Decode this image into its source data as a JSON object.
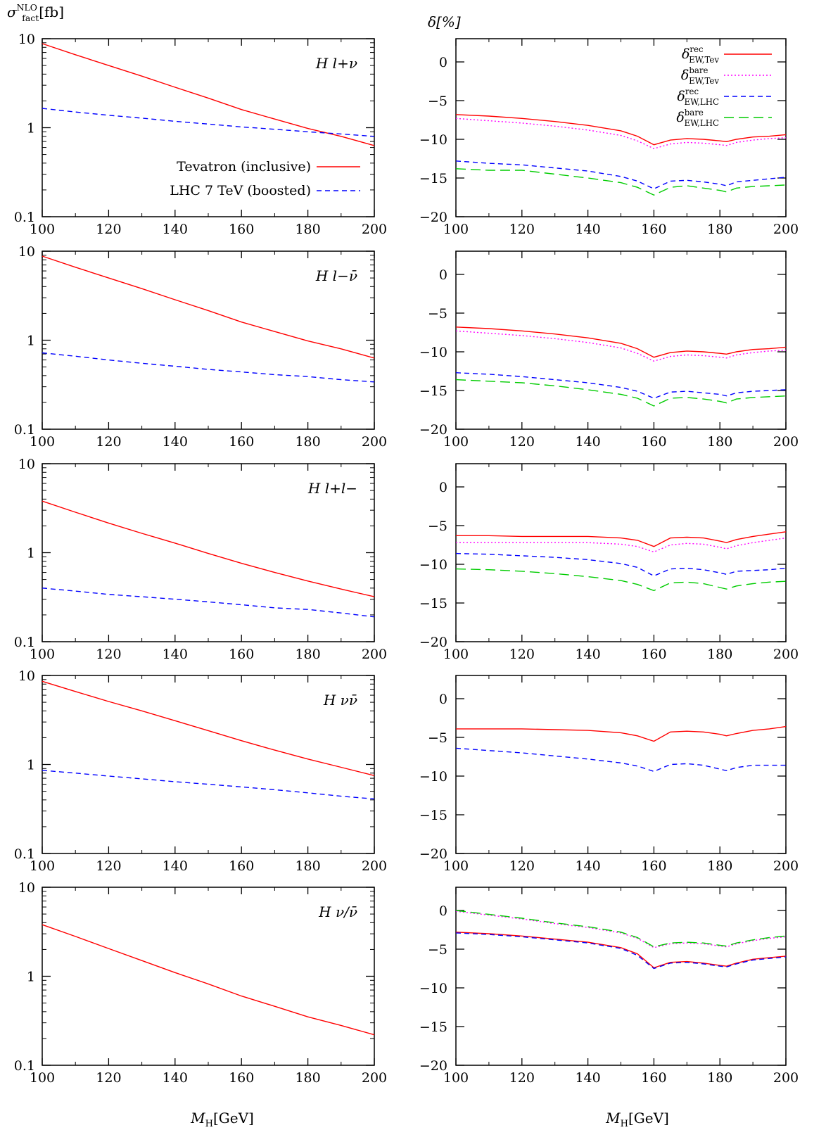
{
  "figure": {
    "left_ylabel": "σ_fact^NLO[fb]",
    "right_ylabel": "δ[%]",
    "xlabel": "M_H[GeV]",
    "colors": {
      "tevatron": "#ff0000",
      "lhc": "#0000ff",
      "tev_bare": "#ff00ff",
      "lhc_bare": "#00cc00"
    }
  },
  "chart_data": [
    {
      "type": "line",
      "panel": "left-1",
      "annotation": "H l+ν",
      "log_y": true,
      "x": [
        100,
        110,
        120,
        130,
        140,
        150,
        160,
        170,
        180,
        190,
        200
      ],
      "xlim": [
        100,
        200
      ],
      "ylim": [
        0.1,
        10
      ],
      "xticks": [
        "100",
        "120",
        "140",
        "160",
        "180",
        "200"
      ],
      "yticks": [
        "0.1",
        "1",
        "10"
      ],
      "legend": [
        {
          "label": "Tevatron (inclusive)",
          "style": "solid",
          "color": "#ff0000"
        },
        {
          "label": "LHC 7 TeV (boosted)",
          "style": "dashed",
          "color": "#0000ff"
        }
      ],
      "series": [
        {
          "name": "Tevatron (inclusive)",
          "style": "solid",
          "color": "#ff0000",
          "values": [
            8.8,
            6.6,
            5.0,
            3.8,
            2.85,
            2.15,
            1.6,
            1.25,
            0.98,
            0.8,
            0.63
          ]
        },
        {
          "name": "LHC 7 TeV (boosted)",
          "style": "dashed",
          "color": "#0000ff",
          "values": [
            1.65,
            1.5,
            1.38,
            1.28,
            1.18,
            1.1,
            1.02,
            0.96,
            0.9,
            0.85,
            0.8
          ]
        }
      ]
    },
    {
      "type": "line",
      "panel": "right-1",
      "legend_pos": "top-right",
      "x": [
        100,
        110,
        120,
        130,
        140,
        150,
        155,
        160,
        165,
        170,
        175,
        180,
        182,
        185,
        190,
        195,
        200
      ],
      "xlim": [
        100,
        200
      ],
      "ylim": [
        -20,
        3
      ],
      "xticks": [
        "100",
        "120",
        "140",
        "160",
        "180",
        "200"
      ],
      "yticks": [
        "0",
        "−5",
        "−10",
        "−15",
        "−20"
      ],
      "legend": [
        {
          "label": "δ_EW,Tev^rec",
          "style": "solid",
          "color": "#ff0000"
        },
        {
          "label": "δ_EW,Tev^bare",
          "style": "dotted",
          "color": "#ff00ff"
        },
        {
          "label": "δ_EW,LHC^rec",
          "style": "dashed",
          "color": "#0000ff"
        },
        {
          "label": "δ_EW,LHC^bare",
          "style": "longdash",
          "color": "#00cc00"
        }
      ],
      "series": [
        {
          "style": "solid",
          "color": "#ff0000",
          "values": [
            -6.8,
            -7.0,
            -7.3,
            -7.7,
            -8.2,
            -8.9,
            -9.6,
            -10.7,
            -10.1,
            -9.9,
            -10.0,
            -10.2,
            -10.3,
            -10.0,
            -9.7,
            -9.6,
            -9.4
          ]
        },
        {
          "style": "dotted",
          "color": "#ff00ff",
          "values": [
            -7.3,
            -7.6,
            -7.9,
            -8.3,
            -8.8,
            -9.5,
            -10.2,
            -11.2,
            -10.6,
            -10.4,
            -10.5,
            -10.7,
            -10.8,
            -10.4,
            -10.1,
            -9.9,
            -9.8
          ]
        },
        {
          "style": "dashed",
          "color": "#0000ff",
          "values": [
            -12.8,
            -13.1,
            -13.3,
            -13.7,
            -14.1,
            -14.8,
            -15.4,
            -16.4,
            -15.4,
            -15.3,
            -15.5,
            -15.8,
            -16.0,
            -15.5,
            -15.3,
            -15.1,
            -14.9
          ]
        },
        {
          "style": "longdash",
          "color": "#00cc00",
          "values": [
            -13.8,
            -14.0,
            -14.0,
            -14.5,
            -15.0,
            -15.6,
            -16.2,
            -17.2,
            -16.2,
            -16.0,
            -16.3,
            -16.6,
            -16.8,
            -16.3,
            -16.1,
            -16.0,
            -15.9
          ]
        }
      ]
    },
    {
      "type": "line",
      "panel": "left-2",
      "annotation": "H l−ν̄",
      "log_y": true,
      "x": [
        100,
        110,
        120,
        130,
        140,
        150,
        160,
        170,
        180,
        190,
        200
      ],
      "xlim": [
        100,
        200
      ],
      "ylim": [
        0.1,
        10
      ],
      "xticks": [
        "100",
        "120",
        "140",
        "160",
        "180",
        "200"
      ],
      "yticks": [
        "0.1",
        "1",
        "10"
      ],
      "series": [
        {
          "style": "solid",
          "color": "#ff0000",
          "values": [
            8.8,
            6.6,
            5.0,
            3.8,
            2.85,
            2.15,
            1.6,
            1.25,
            0.98,
            0.8,
            0.63
          ]
        },
        {
          "style": "dashed",
          "color": "#0000ff",
          "values": [
            0.72,
            0.66,
            0.6,
            0.55,
            0.51,
            0.47,
            0.44,
            0.41,
            0.39,
            0.36,
            0.34
          ]
        }
      ]
    },
    {
      "type": "line",
      "panel": "right-2",
      "x": [
        100,
        110,
        120,
        130,
        140,
        150,
        155,
        160,
        165,
        170,
        175,
        180,
        182,
        185,
        190,
        195,
        200
      ],
      "xlim": [
        100,
        200
      ],
      "ylim": [
        -20,
        3
      ],
      "xticks": [
        "100",
        "120",
        "140",
        "160",
        "180",
        "200"
      ],
      "yticks": [
        "0",
        "−5",
        "−10",
        "−15",
        "−20"
      ],
      "series": [
        {
          "style": "solid",
          "color": "#ff0000",
          "values": [
            -6.8,
            -7.0,
            -7.3,
            -7.7,
            -8.2,
            -8.9,
            -9.6,
            -10.7,
            -10.1,
            -9.9,
            -10.0,
            -10.2,
            -10.3,
            -10.0,
            -9.7,
            -9.6,
            -9.4
          ]
        },
        {
          "style": "dotted",
          "color": "#ff00ff",
          "values": [
            -7.3,
            -7.6,
            -7.9,
            -8.3,
            -8.8,
            -9.5,
            -10.2,
            -11.2,
            -10.6,
            -10.4,
            -10.5,
            -10.7,
            -10.8,
            -10.4,
            -10.1,
            -9.9,
            -9.8
          ]
        },
        {
          "style": "dashed",
          "color": "#0000ff",
          "values": [
            -12.7,
            -12.9,
            -13.2,
            -13.6,
            -14.0,
            -14.6,
            -15.1,
            -16.0,
            -15.2,
            -15.1,
            -15.3,
            -15.5,
            -15.7,
            -15.3,
            -15.1,
            -15.0,
            -14.9
          ]
        },
        {
          "style": "longdash",
          "color": "#00cc00",
          "values": [
            -13.6,
            -13.8,
            -14.0,
            -14.4,
            -14.9,
            -15.5,
            -16.0,
            -17.0,
            -16.0,
            -15.9,
            -16.1,
            -16.4,
            -16.6,
            -16.1,
            -15.9,
            -15.8,
            -15.7
          ]
        }
      ]
    },
    {
      "type": "line",
      "panel": "left-3",
      "annotation": "H l+l−",
      "log_y": true,
      "x": [
        100,
        110,
        120,
        130,
        140,
        150,
        160,
        170,
        180,
        190,
        200
      ],
      "xlim": [
        100,
        200
      ],
      "ylim": [
        0.1,
        10
      ],
      "xticks": [
        "100",
        "120",
        "140",
        "160",
        "180",
        "200"
      ],
      "yticks": [
        "0.1",
        "1",
        "10"
      ],
      "series": [
        {
          "style": "solid",
          "color": "#ff0000",
          "values": [
            3.8,
            2.85,
            2.15,
            1.65,
            1.28,
            0.98,
            0.76,
            0.6,
            0.48,
            0.39,
            0.32
          ]
        },
        {
          "style": "dashed",
          "color": "#0000ff",
          "values": [
            0.4,
            0.37,
            0.34,
            0.32,
            0.3,
            0.28,
            0.26,
            0.24,
            0.23,
            0.21,
            0.19
          ]
        }
      ]
    },
    {
      "type": "line",
      "panel": "right-3",
      "x": [
        100,
        110,
        120,
        130,
        140,
        150,
        155,
        160,
        165,
        170,
        175,
        180,
        182,
        185,
        190,
        195,
        200
      ],
      "xlim": [
        100,
        200
      ],
      "ylim": [
        -20,
        3
      ],
      "xticks": [
        "100",
        "120",
        "140",
        "160",
        "180",
        "200"
      ],
      "yticks": [
        "0",
        "−5",
        "−10",
        "−15",
        "−20"
      ],
      "series": [
        {
          "style": "solid",
          "color": "#ff0000",
          "values": [
            -6.3,
            -6.3,
            -6.4,
            -6.4,
            -6.4,
            -6.6,
            -6.9,
            -7.7,
            -6.6,
            -6.5,
            -6.6,
            -7.0,
            -7.2,
            -6.8,
            -6.4,
            -6.1,
            -5.8
          ]
        },
        {
          "style": "dotted",
          "color": "#ff00ff",
          "values": [
            -7.2,
            -7.2,
            -7.2,
            -7.2,
            -7.2,
            -7.4,
            -7.7,
            -8.4,
            -7.5,
            -7.3,
            -7.4,
            -7.8,
            -8.0,
            -7.6,
            -7.2,
            -6.9,
            -6.6
          ]
        },
        {
          "style": "dashed",
          "color": "#0000ff",
          "values": [
            -8.6,
            -8.7,
            -8.9,
            -9.1,
            -9.4,
            -9.9,
            -10.4,
            -11.5,
            -10.6,
            -10.5,
            -10.7,
            -11.1,
            -11.3,
            -10.9,
            -10.8,
            -10.7,
            -10.5
          ]
        },
        {
          "style": "longdash",
          "color": "#00cc00",
          "values": [
            -10.6,
            -10.7,
            -10.9,
            -11.2,
            -11.6,
            -12.1,
            -12.6,
            -13.4,
            -12.4,
            -12.3,
            -12.5,
            -13.0,
            -13.2,
            -12.8,
            -12.5,
            -12.3,
            -12.2
          ]
        }
      ]
    },
    {
      "type": "line",
      "panel": "left-4",
      "annotation": "H νν̄",
      "log_y": true,
      "x": [
        100,
        110,
        120,
        130,
        140,
        150,
        160,
        170,
        180,
        190,
        200
      ],
      "xlim": [
        100,
        200
      ],
      "ylim": [
        0.1,
        10
      ],
      "xticks": [
        "100",
        "120",
        "140",
        "160",
        "180",
        "200"
      ],
      "yticks": [
        "0.1",
        "1",
        "10"
      ],
      "series": [
        {
          "style": "solid",
          "color": "#ff0000",
          "values": [
            8.6,
            6.6,
            5.1,
            4.0,
            3.1,
            2.4,
            1.85,
            1.45,
            1.15,
            0.93,
            0.75
          ]
        },
        {
          "style": "dashed",
          "color": "#0000ff",
          "values": [
            0.86,
            0.8,
            0.74,
            0.69,
            0.64,
            0.6,
            0.56,
            0.52,
            0.48,
            0.44,
            0.41
          ]
        }
      ]
    },
    {
      "type": "line",
      "panel": "right-4",
      "x": [
        100,
        110,
        120,
        130,
        140,
        150,
        155,
        160,
        165,
        170,
        175,
        180,
        182,
        185,
        190,
        195,
        200
      ],
      "xlim": [
        100,
        200
      ],
      "ylim": [
        -20,
        3
      ],
      "xticks": [
        "100",
        "120",
        "140",
        "160",
        "180",
        "200"
      ],
      "yticks": [
        "0",
        "−5",
        "−10",
        "−15",
        "−20"
      ],
      "series": [
        {
          "style": "solid",
          "color": "#ff0000",
          "values": [
            -3.9,
            -3.9,
            -3.9,
            -4.0,
            -4.1,
            -4.4,
            -4.8,
            -5.5,
            -4.3,
            -4.2,
            -4.3,
            -4.6,
            -4.8,
            -4.5,
            -4.1,
            -3.9,
            -3.6
          ]
        },
        {
          "style": "dashed",
          "color": "#0000ff",
          "values": [
            -6.4,
            -6.7,
            -7.0,
            -7.4,
            -7.8,
            -8.3,
            -8.7,
            -9.4,
            -8.5,
            -8.4,
            -8.6,
            -9.1,
            -9.3,
            -8.9,
            -8.6,
            -8.6,
            -8.6
          ]
        }
      ]
    },
    {
      "type": "line",
      "panel": "left-5",
      "annotation": "H ν/ν̄",
      "log_y": true,
      "x": [
        100,
        110,
        120,
        130,
        140,
        150,
        160,
        170,
        180,
        190,
        200
      ],
      "xlim": [
        100,
        200
      ],
      "ylim": [
        0.1,
        10
      ],
      "xticks": [
        "100",
        "120",
        "140",
        "160",
        "180",
        "200"
      ],
      "yticks": [
        "0.1",
        "1",
        "10"
      ],
      "series": [
        {
          "style": "solid",
          "color": "#ff0000",
          "values": [
            3.8,
            2.8,
            2.05,
            1.5,
            1.1,
            0.82,
            0.6,
            0.46,
            0.35,
            0.28,
            0.22
          ]
        }
      ]
    },
    {
      "type": "line",
      "panel": "right-5",
      "x": [
        100,
        110,
        120,
        130,
        140,
        150,
        155,
        160,
        165,
        170,
        175,
        180,
        182,
        185,
        190,
        195,
        200
      ],
      "xlim": [
        100,
        200
      ],
      "ylim": [
        -20,
        3
      ],
      "xticks": [
        "100",
        "120",
        "140",
        "160",
        "180",
        "200"
      ],
      "yticks": [
        "0",
        "−5",
        "−10",
        "−15",
        "−20"
      ],
      "series": [
        {
          "style": "solid",
          "color": "#ff0000",
          "values": [
            -2.8,
            -3.0,
            -3.3,
            -3.7,
            -4.1,
            -4.8,
            -5.6,
            -7.4,
            -6.7,
            -6.6,
            -6.8,
            -7.1,
            -7.2,
            -6.8,
            -6.3,
            -6.1,
            -5.9
          ]
        },
        {
          "style": "dotted",
          "color": "#ff00ff",
          "values": [
            -0.1,
            -0.6,
            -1.1,
            -1.7,
            -2.2,
            -2.9,
            -3.6,
            -4.8,
            -4.3,
            -4.2,
            -4.3,
            -4.6,
            -4.7,
            -4.3,
            -3.9,
            -3.6,
            -3.4
          ]
        },
        {
          "style": "dashed",
          "color": "#0000ff",
          "values": [
            -2.9,
            -3.1,
            -3.4,
            -3.8,
            -4.2,
            -4.9,
            -5.8,
            -7.5,
            -6.8,
            -6.7,
            -6.9,
            -7.2,
            -7.3,
            -6.9,
            -6.4,
            -6.2,
            -6.0
          ]
        },
        {
          "style": "longdash",
          "color": "#00cc00",
          "values": [
            0.0,
            -0.5,
            -1.0,
            -1.6,
            -2.1,
            -2.8,
            -3.5,
            -4.7,
            -4.2,
            -4.1,
            -4.2,
            -4.5,
            -4.6,
            -4.2,
            -3.8,
            -3.5,
            -3.3
          ]
        }
      ]
    }
  ]
}
